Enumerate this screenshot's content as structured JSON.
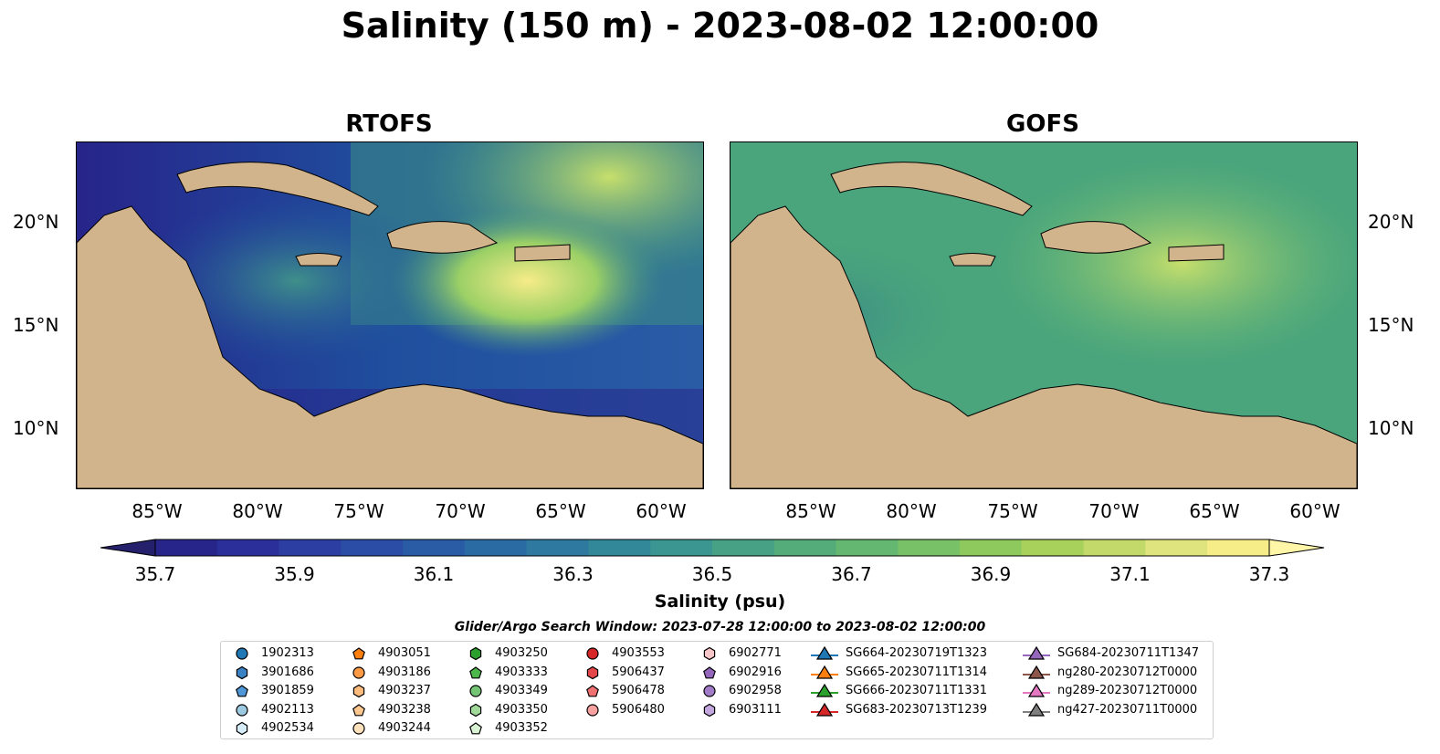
{
  "title": "Salinity (150 m) - 2023-08-02 12:00:00",
  "panels": [
    {
      "title": "RTOFS",
      "colors": [
        "#2d2c8c",
        "#1f4f9e",
        "#3f8f8a",
        "#7fc272",
        "#f6ec88"
      ]
    },
    {
      "title": "GOFS",
      "colors": [
        "#3a8b86",
        "#4aa57c",
        "#67b874",
        "#8fcc6a",
        "#c6df6c"
      ]
    }
  ],
  "axes": {
    "lat_labels": [
      "20°N",
      "15°N",
      "10°N"
    ],
    "lon_labels": [
      "85°W",
      "80°W",
      "75°W",
      "70°W",
      "65°W",
      "60°W"
    ]
  },
  "colorbar": {
    "label": "Salinity (psu)",
    "ticks": [
      "35.7",
      "35.9",
      "36.1",
      "36.3",
      "36.5",
      "36.7",
      "36.9",
      "37.1",
      "37.3"
    ],
    "colors": [
      "#25206c",
      "#27248a",
      "#2b2f9a",
      "#2d3ea3",
      "#2b4da6",
      "#2a5ca6",
      "#2a6ba3",
      "#2d799f",
      "#328799",
      "#3b9590",
      "#46a185",
      "#54ac7b",
      "#64b771",
      "#78c166",
      "#8ec95e",
      "#a8d15c",
      "#c3d96a",
      "#dfe47e",
      "#f6ec88",
      "#fff6a8"
    ]
  },
  "search_window": "Glider/Argo Search Window: 2023-07-28 12:00:00 to 2023-08-02 12:00:00",
  "legend": [
    {
      "label": "1902313",
      "marker": "circle",
      "color": "#1f77b4"
    },
    {
      "label": "3901686",
      "marker": "hexagon",
      "color": "#3b82c4"
    },
    {
      "label": "3901859",
      "marker": "pentagon",
      "color": "#4f97d6"
    },
    {
      "label": "4902113",
      "marker": "circle",
      "color": "#9ecae1"
    },
    {
      "label": "4902534",
      "marker": "hexagon",
      "color": "#d6ecf8"
    },
    {
      "label": "4903051",
      "marker": "pentagon",
      "color": "#ff7f0e"
    },
    {
      "label": "4903186",
      "marker": "circle",
      "color": "#fd9a44"
    },
    {
      "label": "4903237",
      "marker": "hexagon",
      "color": "#fdbb7d"
    },
    {
      "label": "4903238",
      "marker": "pentagon",
      "color": "#fdc890"
    },
    {
      "label": "4903244",
      "marker": "circle",
      "color": "#fde0bc"
    },
    {
      "label": "4903250",
      "marker": "hexagon",
      "color": "#2ca02c"
    },
    {
      "label": "4903333",
      "marker": "pentagon",
      "color": "#4cb84c"
    },
    {
      "label": "4903349",
      "marker": "circle",
      "color": "#74c476"
    },
    {
      "label": "4903350",
      "marker": "hexagon",
      "color": "#a1d99b"
    },
    {
      "label": "4903352",
      "marker": "pentagon",
      "color": "#d9f2d4"
    },
    {
      "label": "4903553",
      "marker": "circle",
      "color": "#d62728"
    },
    {
      "label": "5906437",
      "marker": "hexagon",
      "color": "#e3474a"
    },
    {
      "label": "5906478",
      "marker": "pentagon",
      "color": "#f07171"
    },
    {
      "label": "5906480",
      "marker": "circle",
      "color": "#f7a1a0"
    },
    {
      "label": "6902771",
      "marker": "hexagon",
      "color": "#f6c6c8"
    },
    {
      "label": "6902916",
      "marker": "pentagon",
      "color": "#9467bd"
    },
    {
      "label": "6902958",
      "marker": "circle",
      "color": "#a37cc9"
    },
    {
      "label": "6903111",
      "marker": "hexagon",
      "color": "#c3a6dd"
    },
    {
      "label": "SG664-20230719T1323",
      "marker": "triangle",
      "color": "#1f77b4"
    },
    {
      "label": "SG665-20230711T1314",
      "marker": "triangle",
      "color": "#ff7f0e"
    },
    {
      "label": "SG666-20230711T1331",
      "marker": "triangle",
      "color": "#2ca02c"
    },
    {
      "label": "SG683-20230713T1239",
      "marker": "triangle",
      "color": "#d62728"
    },
    {
      "label": "SG684-20230711T1347",
      "marker": "triangle",
      "color": "#9467bd"
    },
    {
      "label": "ng280-20230712T0000",
      "marker": "triangle",
      "color": "#8c564b"
    },
    {
      "label": "ng289-20230712T0000",
      "marker": "triangle",
      "color": "#e377c2"
    },
    {
      "label": "ng427-20230711T0000",
      "marker": "triangle",
      "color": "#7f7f7f"
    }
  ]
}
